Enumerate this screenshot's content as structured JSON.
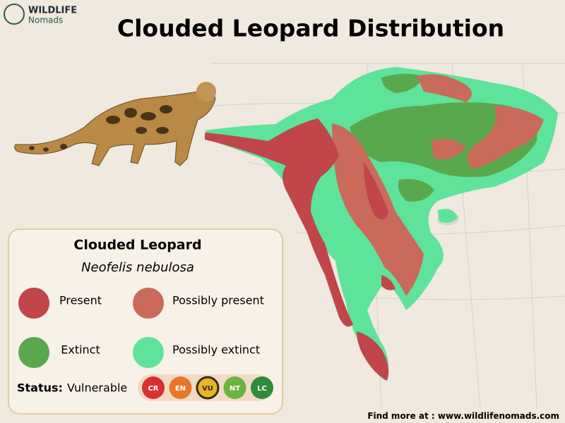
{
  "logo": {
    "name": "WILDLIFE",
    "sub": "Nomads"
  },
  "title": "Clouded Leopard Distribution",
  "legend": {
    "common_name": "Clouded Leopard",
    "scientific_name": "Neofelis nebulosa",
    "items": [
      {
        "label": "Present",
        "color": "#c0464a"
      },
      {
        "label": "Possibly present",
        "color": "#c96a5a"
      },
      {
        "label": "Extinct",
        "color": "#5aa84e"
      },
      {
        "label": "Possibly extinct",
        "color": "#5ee39a"
      }
    ]
  },
  "status": {
    "label": "Status:",
    "value": "Vulnerable",
    "categories": [
      {
        "code": "CR",
        "color": "#d8302f"
      },
      {
        "code": "EN",
        "color": "#e8762a"
      },
      {
        "code": "VU",
        "color": "#e8b52a",
        "highlighted": true
      },
      {
        "code": "NT",
        "color": "#6cb33f"
      },
      {
        "code": "LC",
        "color": "#2f8c3a"
      }
    ]
  },
  "footer": {
    "label": "Find more at :",
    "url": "www.wildlifenomads.com"
  }
}
